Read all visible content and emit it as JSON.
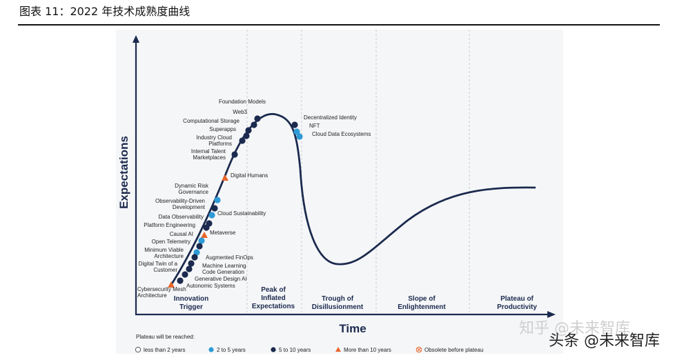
{
  "caption": "图表 11：2022 年技术成熟度曲线",
  "watermarks": [
    "知乎 @未来智库",
    "头条 @未来智库"
  ],
  "chart_data": {
    "type": "line",
    "ylabel": "Expectations",
    "xlabel": "Time",
    "phases": [
      {
        "label": [
          "Innovation",
          "Trigger"
        ]
      },
      {
        "label": [
          "Peak of",
          "Inflated",
          "Expectations"
        ]
      },
      {
        "label": [
          "Trough of",
          "Disillusionment"
        ]
      },
      {
        "label": [
          "Slope of",
          "Enlightenment"
        ]
      },
      {
        "label": [
          "Plateau of",
          "Productivity"
        ]
      }
    ],
    "legend": {
      "title": "Plateau will be reached:",
      "items": [
        {
          "key": "lt2",
          "label": "less than 2 years",
          "shape": "circle-open"
        },
        {
          "key": "2to5",
          "label": "2 to 5 years",
          "shape": "circle",
          "color": "#2e9bd6"
        },
        {
          "key": "5to10",
          "label": "5 to 10 years",
          "shape": "circle",
          "color": "#1b2a4e"
        },
        {
          "key": "gt10",
          "label": "More than 10 years",
          "shape": "triangle",
          "color": "#e8662a"
        },
        {
          "key": "obsolete",
          "label": "Obsolete before plateau",
          "shape": "circle-x",
          "color": "#e8662a"
        }
      ]
    },
    "technologies": [
      {
        "name": "Foundation Models",
        "cat": "5to10"
      },
      {
        "name": "Web3",
        "cat": "5to10"
      },
      {
        "name": "Computational Storage",
        "cat": "5to10"
      },
      {
        "name": "Superapps",
        "cat": "5to10"
      },
      {
        "name": "Industry Cloud Platforms",
        "cat": "5to10"
      },
      {
        "name": "Internal Talent Marketplaces",
        "cat": "5to10"
      },
      {
        "name": "Digital Humans",
        "cat": "gt10"
      },
      {
        "name": "Dynamic Risk Governance",
        "cat": "2to5"
      },
      {
        "name": "Observability-Driven Development",
        "cat": "5to10"
      },
      {
        "name": "Cloud Sustainability",
        "cat": "2to5"
      },
      {
        "name": "Data Observability",
        "cat": "5to10"
      },
      {
        "name": "Platform Engineering",
        "cat": "5to10"
      },
      {
        "name": "Metaverse",
        "cat": "gt10"
      },
      {
        "name": "Causal AI",
        "cat": "2to5"
      },
      {
        "name": "Open Telemetry",
        "cat": "5to10"
      },
      {
        "name": "Minimum Viable Architecture",
        "cat": "2to5"
      },
      {
        "name": "Augmented FinOps",
        "cat": "5to10"
      },
      {
        "name": "Digital Twin of a Customer",
        "cat": "5to10"
      },
      {
        "name": "Machine Learning Code Generation",
        "cat": "5to10"
      },
      {
        "name": "Generative Design AI",
        "cat": "5to10"
      },
      {
        "name": "Autonomic Systems",
        "cat": "5to10"
      },
      {
        "name": "Cybersecurity Mesh Architecture",
        "cat": "gt10"
      },
      {
        "name": "Decentralized Identity",
        "cat": "5to10"
      },
      {
        "name": "NFT",
        "cat": "2to5"
      },
      {
        "name": "Cloud Data Ecosystems",
        "cat": "2to5"
      }
    ]
  }
}
